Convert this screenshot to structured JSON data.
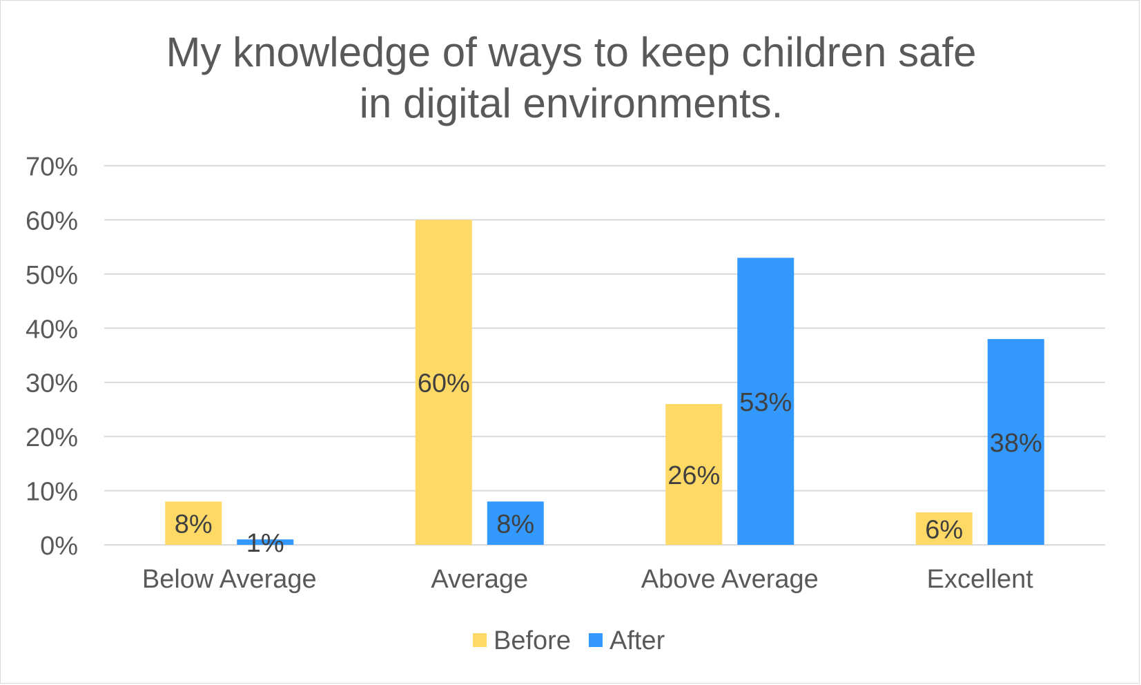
{
  "chart_data": {
    "type": "bar",
    "title": [
      "My knowledge of ways to keep children safe",
      "in digital environments."
    ],
    "categories": [
      "Below Average",
      "Average",
      "Above Average",
      "Excellent"
    ],
    "series": [
      {
        "name": "Before",
        "values": [
          8,
          60,
          26,
          6
        ],
        "labels": [
          "8%",
          "60%",
          "26%",
          "6%"
        ],
        "color": "#ffd966"
      },
      {
        "name": "After",
        "values": [
          1,
          8,
          53,
          38
        ],
        "labels": [
          "1%",
          "8%",
          "53%",
          "38%"
        ],
        "color": "#3399ff"
      }
    ],
    "ylim": [
      0,
      70
    ],
    "yticks": [
      0,
      10,
      20,
      30,
      40,
      50,
      60,
      70
    ],
    "ytick_labels": [
      "0%",
      "10%",
      "20%",
      "30%",
      "40%",
      "50%",
      "60%",
      "70%"
    ],
    "xlabel": "",
    "ylabel": "",
    "grid": true,
    "legend_position": "bottom",
    "colors": {
      "text": "#595959",
      "data_label": "#404040",
      "gridline": "#d9d9d9"
    }
  }
}
